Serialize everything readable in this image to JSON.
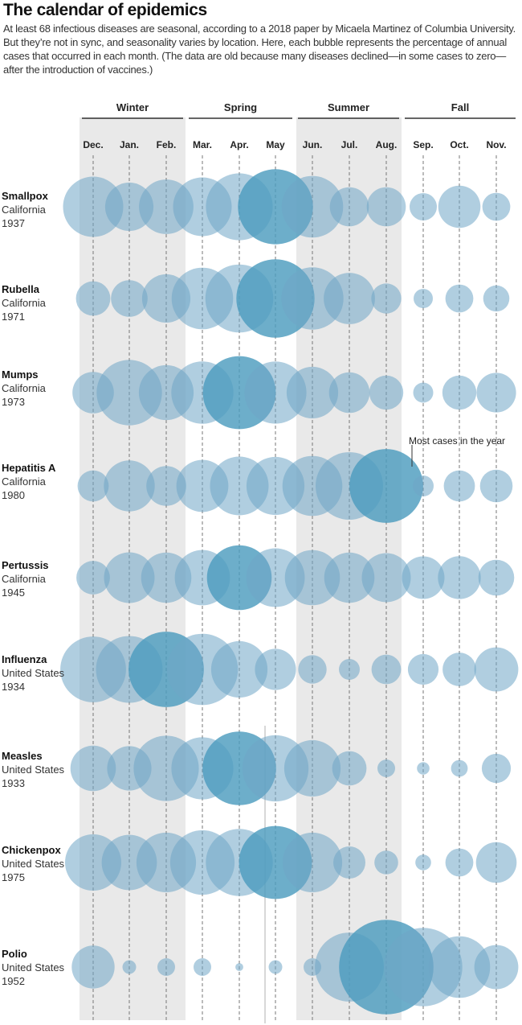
{
  "header": {
    "title": "The calendar of epidemics",
    "subtitle": "At least 68 infectious diseases are seasonal, according to a 2018 paper by Micaela Martinez of Columbia University. But they’re not in sync, and seasonality varies by location. Here, each bubble represents the percentage of annual cases that occurred in each month. (The data are old because many diseases declined—in some cases to zero—after the introduction of vaccines.)"
  },
  "chart_data": {
    "type": "bubble",
    "title": "The calendar of epidemics",
    "value_meaning": "Bubble size = percentage of annual cases in each month (estimated from bubble diameters)",
    "seasons": [
      {
        "name": "Winter",
        "months": [
          "Dec.",
          "Jan.",
          "Feb."
        ]
      },
      {
        "name": "Spring",
        "months": [
          "Mar.",
          "Apr.",
          "May"
        ]
      },
      {
        "name": "Summer",
        "months": [
          "Jun.",
          "Jul.",
          "Aug."
        ]
      },
      {
        "name": "Fall",
        "months": [
          "Sep.",
          "Oct.",
          "Nov."
        ]
      }
    ],
    "months": [
      "Dec.",
      "Jan.",
      "Feb.",
      "Mar.",
      "Apr.",
      "May",
      "Jun.",
      "Jul.",
      "Aug.",
      "Sep.",
      "Oct.",
      "Nov."
    ],
    "series": [
      {
        "name": "Smallpox",
        "location": "California",
        "year": "1937",
        "values": [
          11.6,
          7.5,
          9.5,
          11.0,
          14.3,
          18.0,
          12.1,
          4.9,
          4.9,
          2.4,
          5.7,
          2.5
        ]
      },
      {
        "name": "Rubella",
        "location": "California",
        "year": "1971",
        "values": [
          3.8,
          4.3,
          7.5,
          12.1,
          14.8,
          19.6,
          12.4,
          8.4,
          2.9,
          1.2,
          2.5,
          2.2
        ]
      },
      {
        "name": "Mumps",
        "location": "California",
        "year": "1973",
        "values": [
          5.5,
          13.7,
          9.6,
          12.4,
          17.0,
          12.3,
          8.5,
          5.3,
          3.7,
          1.3,
          3.7,
          5.0
        ]
      },
      {
        "name": "Hepatitis A",
        "location": "California",
        "year": "1980",
        "values": [
          3.1,
          8.3,
          5.1,
          8.7,
          11.0,
          10.8,
          11.5,
          14.6,
          17.4,
          1.4,
          3.1,
          3.4
        ]
      },
      {
        "name": "Pertussis",
        "location": "California",
        "year": "1945",
        "values": [
          3.6,
          8.2,
          8.1,
          9.8,
          13.4,
          11.0,
          9.7,
          8.1,
          7.7,
          5.8,
          5.9,
          4.1
        ]
      },
      {
        "name": "Influenza",
        "location": "United States",
        "year": "1934",
        "values": [
          13.8,
          14.2,
          18.2,
          16.2,
          10.2,
          5.4,
          2.6,
          1.4,
          2.8,
          3.0,
          3.6,
          6.2
        ]
      },
      {
        "name": "Measles",
        "location": "United States",
        "year": "1933",
        "values": [
          6.6,
          6.3,
          13.6,
          12.3,
          17.3,
          14.0,
          10.2,
          3.8,
          1.0,
          0.5,
          0.9,
          2.7
        ]
      },
      {
        "name": "Chickenpox",
        "location": "United States",
        "year": "1975",
        "values": [
          10.1,
          9.8,
          11.4,
          13.3,
          14.4,
          17.0,
          11.4,
          3.3,
          1.8,
          0.8,
          2.5,
          5.3
        ]
      },
      {
        "name": "Polio",
        "location": "United States",
        "year": "1952",
        "values": [
          5.9,
          0.6,
          1.0,
          1.0,
          0.2,
          0.6,
          1.0,
          15.2,
          28.6,
          19.6,
          12.1,
          6.2
        ]
      }
    ],
    "annotation": {
      "text": "Most cases in the year",
      "row": "Hepatitis A",
      "month": "Aug."
    }
  }
}
